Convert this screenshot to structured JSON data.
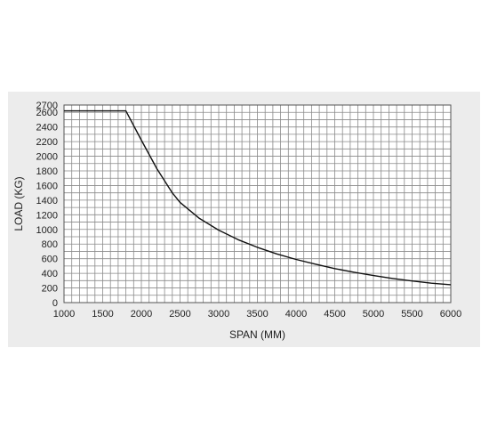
{
  "colors": {
    "background": "#ececec",
    "plot_area": "#ffffff",
    "grid": "#8a8a8a",
    "line": "#111111",
    "text": "#222222"
  },
  "chart_data": {
    "type": "line",
    "title": "",
    "xlabel": "SPAN (MM)",
    "ylabel": "LOAD (KG)",
    "xlim": [
      1000,
      6000
    ],
    "ylim": [
      0,
      2700
    ],
    "grid": true,
    "legend": "none",
    "x_ticks": [
      1000,
      1500,
      2000,
      2500,
      3000,
      3500,
      4000,
      4500,
      5000,
      5500,
      6000
    ],
    "y_ticks": [
      0,
      200,
      400,
      600,
      800,
      1000,
      1200,
      1400,
      1600,
      1800,
      2000,
      2200,
      2400,
      2600,
      2700
    ],
    "series": [
      {
        "x": [
          1000,
          1800,
          2000,
          2200,
          2400,
          2500,
          2750,
          3000,
          3250,
          3500,
          3750,
          4000,
          4250,
          4500,
          4750,
          5000,
          5250,
          5500,
          5750,
          6000
        ],
        "y": [
          2620,
          2620,
          2220,
          1830,
          1500,
          1370,
          1150,
          990,
          860,
          755,
          665,
          590,
          525,
          465,
          415,
          370,
          330,
          295,
          265,
          245
        ]
      }
    ]
  }
}
